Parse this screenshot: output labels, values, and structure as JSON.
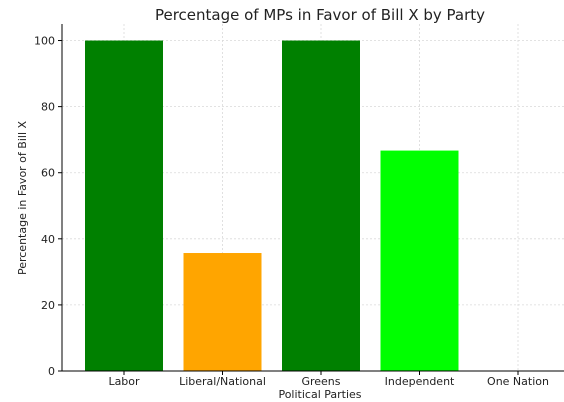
{
  "chart_data": {
    "type": "bar",
    "title": "Percentage of MPs in Favor of Bill X by Party",
    "xlabel": "Political Parties",
    "ylabel": "Percentage in Favor of Bill X",
    "categories": [
      "Labor",
      "Liberal/National",
      "Greens",
      "Independent",
      "One Nation"
    ],
    "values": [
      100,
      35.7,
      100,
      66.7,
      0
    ],
    "colors": [
      "#008000",
      "#ffa500",
      "#008000",
      "#00ff00",
      "#008000"
    ],
    "ylim": [
      0,
      105
    ],
    "yticks": [
      0,
      20,
      40,
      60,
      80,
      100
    ],
    "grid": true
  }
}
